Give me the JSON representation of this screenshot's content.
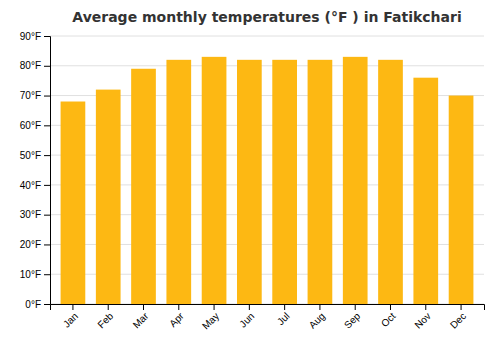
{
  "chart_data": {
    "type": "bar",
    "title": "Average monthly temperatures (°F ) in Fatikchari",
    "categories": [
      "Jan",
      "Feb",
      "Mar",
      "Apr",
      "May",
      "Jun",
      "Jul",
      "Aug",
      "Sep",
      "Oct",
      "Nov",
      "Dec"
    ],
    "values": [
      68,
      72,
      79,
      82,
      83,
      82,
      82,
      82,
      83,
      82,
      76,
      70
    ],
    "color": "#FDB813",
    "ylim": [
      0,
      90
    ],
    "yticks": [
      {
        "value": 0,
        "label": "0°F"
      },
      {
        "value": 10,
        "label": "10°F"
      },
      {
        "value": 20,
        "label": "20°F"
      },
      {
        "value": 30,
        "label": "30°F"
      },
      {
        "value": 40,
        "label": "40°F"
      },
      {
        "value": 50,
        "label": "50°F"
      },
      {
        "value": 60,
        "label": "60°F"
      },
      {
        "value": 70,
        "label": "70°F"
      },
      {
        "value": 80,
        "label": "80°F"
      },
      {
        "value": 90,
        "label": "90°F"
      }
    ],
    "grid": true
  }
}
